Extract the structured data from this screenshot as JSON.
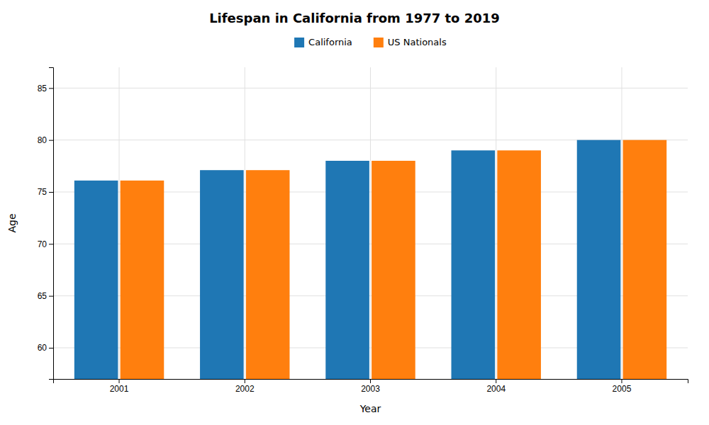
{
  "chart_data": {
    "type": "bar",
    "title": "Lifespan in California from 1977 to 2019",
    "x_label": "Year",
    "y_label": "Age",
    "categories": [
      "2001",
      "2002",
      "2003",
      "2004",
      "2005"
    ],
    "series": [
      {
        "name": "California",
        "values": [
          76.1,
          77.1,
          78.0,
          79.0,
          80.0
        ]
      },
      {
        "name": "US Nationals",
        "values": [
          76.1,
          77.1,
          78.0,
          79.0,
          80.0
        ]
      }
    ],
    "ylim": [
      57,
      87
    ],
    "yticks": [
      60,
      65,
      70,
      75,
      80,
      85
    ],
    "grid": true,
    "legend": "top"
  }
}
